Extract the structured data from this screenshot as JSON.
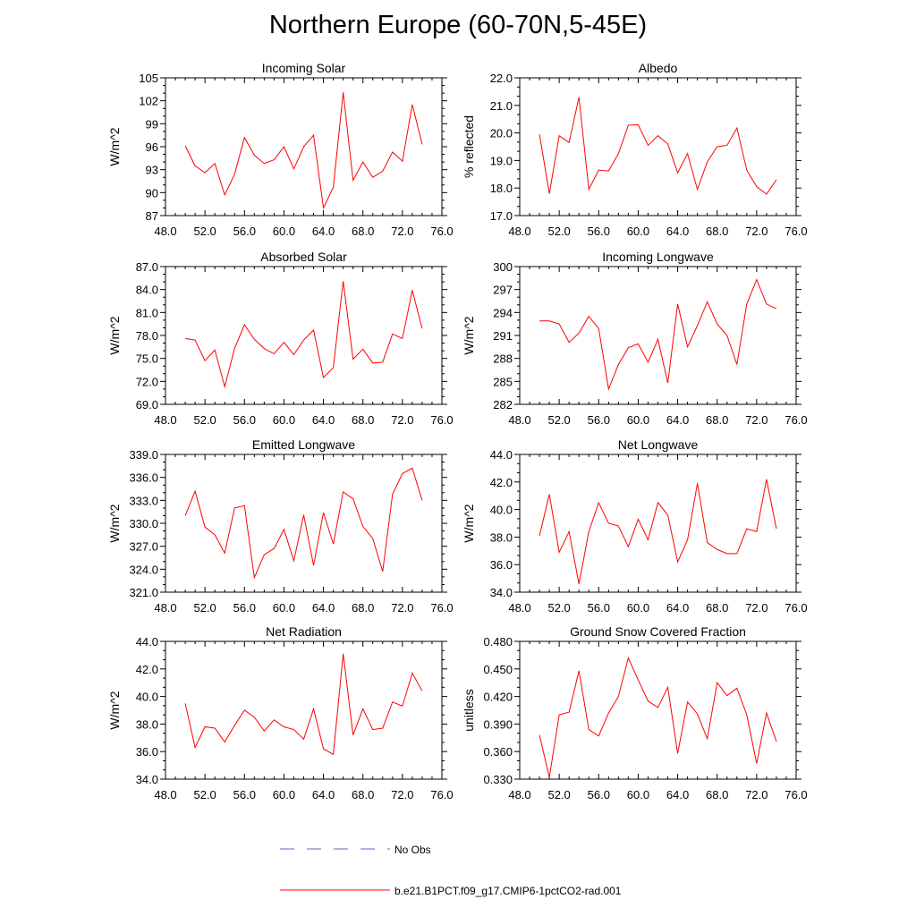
{
  "page": {
    "title": "Northern Europe (60-70N,5-45E)"
  },
  "legend": {
    "obs_label": "No Obs",
    "model_label": "b.e21.B1PCT.f09_g17.CMIP6-1pctCO2-rad.001",
    "obs_color": "#6666cc",
    "model_color": "#ff0000"
  },
  "chart_data": [
    {
      "type": "line",
      "title": "Incoming Solar",
      "ylabel": "W/m^2",
      "xlabel": "",
      "xlim": [
        48,
        76
      ],
      "ylim": [
        87,
        105
      ],
      "xticks": [
        "48.0",
        "52.0",
        "56.0",
        "60.0",
        "64.0",
        "68.0",
        "72.0",
        "76.0"
      ],
      "yticks": [
        "87",
        "90",
        "93",
        "96",
        "99",
        "102",
        "105"
      ],
      "x": [
        50,
        51,
        52,
        53,
        54,
        55,
        56,
        57,
        58,
        59,
        60,
        61,
        62,
        63,
        64,
        65,
        66,
        67,
        68,
        69,
        70,
        71,
        72,
        73,
        74
      ],
      "series": [
        {
          "name": "b.e21.B1PCT.f09_g17.CMIP6-1pctCO2-rad.001",
          "color": "#ff0000",
          "values": [
            96.1,
            93.5,
            92.6,
            93.8,
            89.7,
            92.4,
            97.2,
            94.9,
            93.8,
            94.3,
            96.0,
            93.1,
            96.0,
            97.5,
            88.0,
            90.7,
            103.1,
            91.6,
            94.0,
            92.0,
            92.8,
            95.3,
            94.1,
            101.5,
            96.3
          ]
        }
      ]
    },
    {
      "type": "line",
      "title": "Albedo",
      "ylabel": "% reflected",
      "xlabel": "",
      "xlim": [
        48,
        76
      ],
      "ylim": [
        17,
        22
      ],
      "xticks": [
        "48.0",
        "52.0",
        "56.0",
        "60.0",
        "64.0",
        "68.0",
        "72.0",
        "76.0"
      ],
      "yticks": [
        "17.0",
        "18.0",
        "19.0",
        "20.0",
        "21.0",
        "22.0"
      ],
      "x": [
        50,
        51,
        52,
        53,
        54,
        55,
        56,
        57,
        58,
        59,
        60,
        61,
        62,
        63,
        64,
        65,
        66,
        67,
        68,
        69,
        70,
        71,
        72,
        73,
        74
      ],
      "series": [
        {
          "name": "b.e21.B1PCT.f09_g17.CMIP6-1pctCO2-rad.001",
          "color": "#ff0000",
          "values": [
            19.95,
            17.8,
            19.9,
            19.65,
            21.3,
            17.95,
            18.65,
            18.62,
            19.25,
            20.28,
            20.3,
            19.55,
            19.9,
            19.6,
            18.55,
            19.25,
            17.95,
            18.95,
            19.5,
            19.55,
            20.18,
            18.65,
            18.05,
            17.78,
            18.3
          ]
        }
      ]
    },
    {
      "type": "line",
      "title": "Absorbed Solar",
      "ylabel": "W/m^2",
      "xlabel": "",
      "xlim": [
        48,
        76
      ],
      "ylim": [
        69,
        87
      ],
      "xticks": [
        "48.0",
        "52.0",
        "56.0",
        "60.0",
        "64.0",
        "68.0",
        "72.0",
        "76.0"
      ],
      "yticks": [
        "69.0",
        "72.0",
        "75.0",
        "78.0",
        "81.0",
        "84.0",
        "87.0"
      ],
      "x": [
        50,
        51,
        52,
        53,
        54,
        55,
        56,
        57,
        58,
        59,
        60,
        61,
        62,
        63,
        64,
        65,
        66,
        67,
        68,
        69,
        70,
        71,
        72,
        73,
        74
      ],
      "series": [
        {
          "name": "b.e21.B1PCT.f09_g17.CMIP6-1pctCO2-rad.001",
          "color": "#ff0000",
          "values": [
            77.6,
            77.4,
            74.7,
            76.1,
            71.3,
            76.3,
            79.4,
            77.5,
            76.3,
            75.6,
            77.1,
            75.5,
            77.4,
            78.7,
            72.5,
            73.8,
            85.1,
            74.9,
            76.2,
            74.4,
            74.5,
            78.2,
            77.6,
            83.9,
            78.9
          ]
        }
      ]
    },
    {
      "type": "line",
      "title": "Incoming Longwave",
      "ylabel": "W/m^2",
      "xlabel": "",
      "xlim": [
        48,
        76
      ],
      "ylim": [
        282,
        300
      ],
      "xticks": [
        "48.0",
        "52.0",
        "56.0",
        "60.0",
        "64.0",
        "68.0",
        "72.0",
        "76.0"
      ],
      "yticks": [
        "282",
        "285",
        "288",
        "291",
        "294",
        "297",
        "300"
      ],
      "x": [
        50,
        51,
        52,
        53,
        54,
        55,
        56,
        57,
        58,
        59,
        60,
        61,
        62,
        63,
        64,
        65,
        66,
        67,
        68,
        69,
        70,
        71,
        72,
        73,
        74
      ],
      "series": [
        {
          "name": "b.e21.B1PCT.f09_g17.CMIP6-1pctCO2-rad.001",
          "color": "#ff0000",
          "values": [
            292.9,
            292.9,
            292.5,
            290.1,
            291.3,
            293.5,
            291.9,
            284.0,
            287.2,
            289.4,
            289.9,
            287.5,
            290.5,
            284.8,
            295.1,
            289.5,
            292.3,
            295.4,
            292.5,
            291.0,
            287.2,
            295.1,
            298.3,
            295.1,
            294.5
          ]
        }
      ]
    },
    {
      "type": "line",
      "title": "Emitted Longwave",
      "ylabel": "W/m^2",
      "xlabel": "",
      "xlim": [
        48,
        76
      ],
      "ylim": [
        321,
        339
      ],
      "xticks": [
        "48.0",
        "52.0",
        "56.0",
        "60.0",
        "64.0",
        "68.0",
        "72.0",
        "76.0"
      ],
      "yticks": [
        "321.0",
        "324.0",
        "327.0",
        "330.0",
        "333.0",
        "336.0",
        "339.0"
      ],
      "x": [
        50,
        51,
        52,
        53,
        54,
        55,
        56,
        57,
        58,
        59,
        60,
        61,
        62,
        63,
        64,
        65,
        66,
        67,
        68,
        69,
        70,
        71,
        72,
        73,
        74
      ],
      "series": [
        {
          "name": "b.e21.B1PCT.f09_g17.CMIP6-1pctCO2-rad.001",
          "color": "#ff0000",
          "values": [
            331.0,
            334.2,
            329.5,
            328.5,
            326.1,
            332.0,
            332.3,
            322.9,
            325.9,
            326.7,
            329.2,
            325.1,
            331.1,
            324.5,
            331.4,
            327.3,
            334.1,
            333.2,
            329.6,
            328.0,
            323.7,
            333.8,
            336.5,
            337.2,
            333.0
          ]
        }
      ]
    },
    {
      "type": "line",
      "title": "Net Longwave",
      "ylabel": "W/m^2",
      "xlabel": "",
      "xlim": [
        48,
        76
      ],
      "ylim": [
        34,
        44
      ],
      "xticks": [
        "48.0",
        "52.0",
        "56.0",
        "60.0",
        "64.0",
        "68.0",
        "72.0",
        "76.0"
      ],
      "yticks": [
        "34.0",
        "36.0",
        "38.0",
        "40.0",
        "42.0",
        "44.0"
      ],
      "x": [
        50,
        51,
        52,
        53,
        54,
        55,
        56,
        57,
        58,
        59,
        60,
        61,
        62,
        63,
        64,
        65,
        66,
        67,
        68,
        69,
        70,
        71,
        72,
        73,
        74
      ],
      "series": [
        {
          "name": "b.e21.B1PCT.f09_g17.CMIP6-1pctCO2-rad.001",
          "color": "#ff0000",
          "values": [
            38.1,
            41.1,
            36.9,
            38.4,
            34.6,
            38.4,
            40.5,
            39.0,
            38.8,
            37.3,
            39.3,
            37.8,
            40.5,
            39.6,
            36.2,
            37.8,
            41.9,
            37.6,
            37.1,
            36.8,
            36.8,
            38.6,
            38.4,
            42.2,
            38.6
          ]
        }
      ]
    },
    {
      "type": "line",
      "title": "Net Radiation",
      "ylabel": "W/m^2",
      "xlabel": "",
      "xlim": [
        48,
        76
      ],
      "ylim": [
        34,
        44
      ],
      "xticks": [
        "48.0",
        "52.0",
        "56.0",
        "60.0",
        "64.0",
        "68.0",
        "72.0",
        "76.0"
      ],
      "yticks": [
        "34.0",
        "36.0",
        "38.0",
        "40.0",
        "42.0",
        "44.0"
      ],
      "x": [
        50,
        51,
        52,
        53,
        54,
        55,
        56,
        57,
        58,
        59,
        60,
        61,
        62,
        63,
        64,
        65,
        66,
        67,
        68,
        69,
        70,
        71,
        72,
        73,
        74
      ],
      "series": [
        {
          "name": "b.e21.B1PCT.f09_g17.CMIP6-1pctCO2-rad.001",
          "color": "#ff0000",
          "values": [
            39.5,
            36.3,
            37.8,
            37.7,
            36.7,
            37.9,
            39.0,
            38.5,
            37.5,
            38.3,
            37.8,
            37.6,
            36.9,
            39.1,
            36.2,
            35.8,
            43.1,
            37.2,
            39.1,
            37.6,
            37.7,
            39.6,
            39.3,
            41.7,
            40.4
          ]
        }
      ]
    },
    {
      "type": "line",
      "title": "Ground Snow Covered Fraction",
      "ylabel": "unitless",
      "xlabel": "",
      "xlim": [
        48,
        76
      ],
      "ylim": [
        0.33,
        0.48
      ],
      "xticks": [
        "48.0",
        "52.0",
        "56.0",
        "60.0",
        "64.0",
        "68.0",
        "72.0",
        "76.0"
      ],
      "yticks": [
        "0.330",
        "0.360",
        "0.390",
        "0.420",
        "0.450",
        "0.480"
      ],
      "x": [
        50,
        51,
        52,
        53,
        54,
        55,
        56,
        57,
        58,
        59,
        60,
        61,
        62,
        63,
        64,
        65,
        66,
        67,
        68,
        69,
        70,
        71,
        72,
        73,
        74
      ],
      "series": [
        {
          "name": "b.e21.B1PCT.f09_g17.CMIP6-1pctCO2-rad.001",
          "color": "#ff0000",
          "values": [
            0.378,
            0.332,
            0.4,
            0.403,
            0.448,
            0.384,
            0.377,
            0.402,
            0.42,
            0.462,
            0.438,
            0.415,
            0.408,
            0.43,
            0.358,
            0.414,
            0.401,
            0.374,
            0.435,
            0.421,
            0.429,
            0.4,
            0.347,
            0.402,
            0.371
          ]
        }
      ]
    }
  ]
}
